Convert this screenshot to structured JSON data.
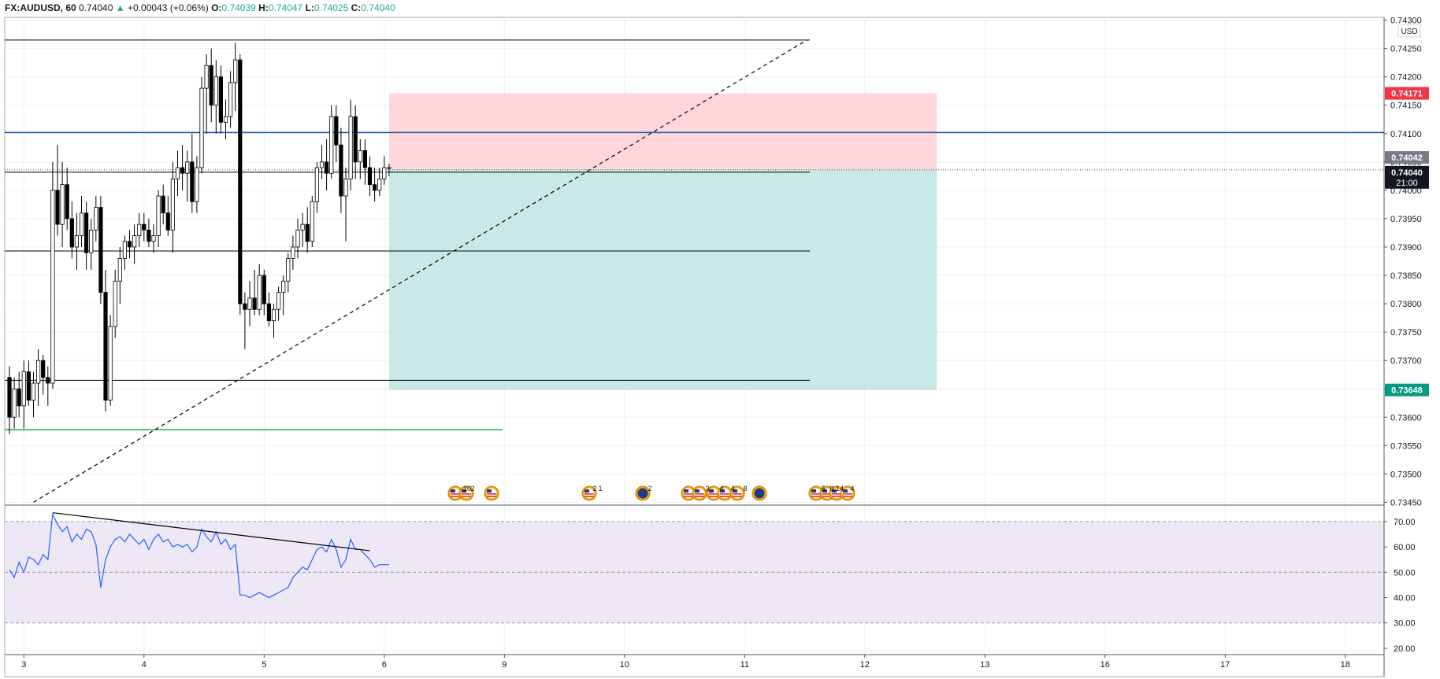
{
  "header": {
    "symbol": "FX:AUDUSD, 60",
    "last": "0.74040",
    "arrow": "▲",
    "change": "+0.00043 (+0.06%)",
    "o_label": "O:",
    "o_value": "0.74039",
    "h_label": "H:",
    "h_value": "0.74047",
    "l_label": "L:",
    "l_value": "0.74025",
    "c_label": "C:",
    "c_value": "0.74040"
  },
  "currency": "USD",
  "price_axis": {
    "ticks": [
      "0.74300",
      "0.74250",
      "0.74200",
      "0.74150",
      "0.74100",
      "0.74050",
      "0.74000",
      "0.73950",
      "0.73900",
      "0.73850",
      "0.73800",
      "0.73750",
      "0.73700",
      "0.73650",
      "0.73600",
      "0.73550",
      "0.73500",
      "0.73450"
    ],
    "min": 0.73445,
    "max": 0.74305
  },
  "price_labels": {
    "target": {
      "value": "0.74171",
      "color": "#f23645"
    },
    "prev": {
      "value": "0.74042",
      "color": "#787b86"
    },
    "last": {
      "value": "0.74040",
      "time": "21:00",
      "color": "#131722"
    },
    "stop": {
      "value": "0.73648",
      "color": "#089981"
    }
  },
  "rsi_axis": {
    "ticks": [
      "70.00",
      "60.00",
      "50.00",
      "40.00",
      "30.00",
      "20.00"
    ],
    "min": 17.5,
    "max": 76.5,
    "upper": 70,
    "mid": 50,
    "lower": 30
  },
  "time_axis": {
    "labels": [
      "3",
      "4",
      "5",
      "6",
      "9",
      "10",
      "11",
      "12",
      "13",
      "16",
      "17",
      "18"
    ]
  },
  "event_labels": [
    "10",
    "2",
    "2",
    "1",
    "2",
    "3",
    "4",
    "4",
    "8",
    "5",
    "0",
    "14",
    "4"
  ],
  "colors": {
    "up": "#ffffff",
    "down": "#000000",
    "outline": "#000000",
    "profit": "#b2dfdb",
    "loss": "#ffcdd2",
    "rsi": "#2962ff",
    "rsi_band": "#ede7f6",
    "hline_blue": "#1c5bab",
    "hline_green": "#28a745"
  },
  "chart_data": {
    "type": "candlestick",
    "symbol": "FX:AUDUSD",
    "interval": "60",
    "candles": [
      [
        0.7367,
        0.7369,
        0.7357,
        0.736
      ],
      [
        0.736,
        0.7367,
        0.7358,
        0.7365
      ],
      [
        0.7365,
        0.7368,
        0.736,
        0.7362
      ],
      [
        0.7362,
        0.737,
        0.7358,
        0.7368
      ],
      [
        0.7368,
        0.737,
        0.7362,
        0.7363
      ],
      [
        0.7363,
        0.7368,
        0.736,
        0.7366
      ],
      [
        0.7366,
        0.7372,
        0.7362,
        0.737
      ],
      [
        0.737,
        0.7371,
        0.7364,
        0.7367
      ],
      [
        0.7367,
        0.7369,
        0.7362,
        0.7366
      ],
      [
        0.7366,
        0.7405,
        0.7365,
        0.74
      ],
      [
        0.74,
        0.7408,
        0.7392,
        0.7394
      ],
      [
        0.7394,
        0.7405,
        0.739,
        0.7401
      ],
      [
        0.7401,
        0.7404,
        0.7393,
        0.7395
      ],
      [
        0.7395,
        0.7398,
        0.7388,
        0.739
      ],
      [
        0.739,
        0.7396,
        0.7386,
        0.7392
      ],
      [
        0.7392,
        0.7399,
        0.739,
        0.7396
      ],
      [
        0.7396,
        0.7398,
        0.7386,
        0.7389
      ],
      [
        0.7389,
        0.7395,
        0.7386,
        0.7393
      ],
      [
        0.7393,
        0.7399,
        0.7391,
        0.7397
      ],
      [
        0.7397,
        0.7399,
        0.738,
        0.7382
      ],
      [
        0.7382,
        0.7386,
        0.7361,
        0.7363
      ],
      [
        0.7363,
        0.7378,
        0.7362,
        0.7376
      ],
      [
        0.7376,
        0.7386,
        0.7374,
        0.7384
      ],
      [
        0.7384,
        0.739,
        0.738,
        0.7388
      ],
      [
        0.7388,
        0.7392,
        0.7386,
        0.7391
      ],
      [
        0.7391,
        0.7393,
        0.7388,
        0.739
      ],
      [
        0.739,
        0.7394,
        0.7387,
        0.7392
      ],
      [
        0.7392,
        0.7396,
        0.739,
        0.7394
      ],
      [
        0.7394,
        0.7396,
        0.7391,
        0.7393
      ],
      [
        0.7393,
        0.7395,
        0.739,
        0.7391
      ],
      [
        0.7391,
        0.7394,
        0.7389,
        0.7392
      ],
      [
        0.7392,
        0.74,
        0.739,
        0.7399
      ],
      [
        0.7399,
        0.7401,
        0.7394,
        0.7396
      ],
      [
        0.7396,
        0.7399,
        0.7392,
        0.7393
      ],
      [
        0.7393,
        0.7405,
        0.7389,
        0.7402
      ],
      [
        0.7402,
        0.7407,
        0.7399,
        0.7404
      ],
      [
        0.7404,
        0.7408,
        0.74,
        0.7403
      ],
      [
        0.7403,
        0.7407,
        0.7398,
        0.7405
      ],
      [
        0.7405,
        0.741,
        0.7396,
        0.7398
      ],
      [
        0.7398,
        0.7406,
        0.7396,
        0.7404
      ],
      [
        0.7404,
        0.742,
        0.7403,
        0.7418
      ],
      [
        0.7418,
        0.7424,
        0.741,
        0.7422
      ],
      [
        0.7422,
        0.7425,
        0.7412,
        0.7415
      ],
      [
        0.7415,
        0.7423,
        0.741,
        0.742
      ],
      [
        0.742,
        0.7422,
        0.741,
        0.7412
      ],
      [
        0.7412,
        0.7416,
        0.7409,
        0.7413
      ],
      [
        0.7413,
        0.7421,
        0.7411,
        0.7419
      ],
      [
        0.7419,
        0.7426,
        0.7414,
        0.7423
      ],
      [
        0.7423,
        0.7424,
        0.7378,
        0.738
      ],
      [
        0.738,
        0.7382,
        0.7372,
        0.7379
      ],
      [
        0.7379,
        0.7384,
        0.7376,
        0.7381
      ],
      [
        0.7381,
        0.7386,
        0.7378,
        0.7379
      ],
      [
        0.7379,
        0.7387,
        0.7378,
        0.7385
      ],
      [
        0.7385,
        0.7386,
        0.7378,
        0.738
      ],
      [
        0.738,
        0.7382,
        0.7376,
        0.7377
      ],
      [
        0.7377,
        0.738,
        0.7374,
        0.7379
      ],
      [
        0.7379,
        0.7383,
        0.7377,
        0.7382
      ],
      [
        0.7382,
        0.7385,
        0.7378,
        0.7384
      ],
      [
        0.7384,
        0.7389,
        0.7382,
        0.7388
      ],
      [
        0.7388,
        0.7392,
        0.7386,
        0.739
      ],
      [
        0.739,
        0.7395,
        0.7388,
        0.7393
      ],
      [
        0.7393,
        0.7396,
        0.739,
        0.7394
      ],
      [
        0.7394,
        0.7397,
        0.7389,
        0.7391
      ],
      [
        0.7391,
        0.7399,
        0.739,
        0.7398
      ],
      [
        0.7398,
        0.7405,
        0.7396,
        0.7404
      ],
      [
        0.7404,
        0.7408,
        0.7402,
        0.7405
      ],
      [
        0.7405,
        0.7409,
        0.74,
        0.7403
      ],
      [
        0.7403,
        0.7415,
        0.7402,
        0.7413
      ],
      [
        0.7413,
        0.7415,
        0.7405,
        0.7408
      ],
      [
        0.7408,
        0.7411,
        0.7396,
        0.7399
      ],
      [
        0.7399,
        0.7404,
        0.7391,
        0.7402
      ],
      [
        0.7402,
        0.7416,
        0.74,
        0.7413
      ],
      [
        0.7413,
        0.7415,
        0.7402,
        0.7405
      ],
      [
        0.7405,
        0.7409,
        0.7402,
        0.7407
      ],
      [
        0.7407,
        0.7409,
        0.7401,
        0.7404
      ],
      [
        0.7404,
        0.7406,
        0.7399,
        0.7401
      ],
      [
        0.7401,
        0.7404,
        0.7398,
        0.74
      ],
      [
        0.74,
        0.7404,
        0.7399,
        0.7402
      ],
      [
        0.7402,
        0.7406,
        0.7401,
        0.7404
      ],
      [
        0.74039,
        0.74047,
        0.74025,
        0.7404
      ]
    ],
    "rsi": [
      51,
      48,
      54,
      50,
      56,
      55,
      53,
      57,
      55,
      73,
      69,
      66,
      68,
      62,
      65,
      63,
      67,
      66,
      61,
      44,
      55,
      60,
      63,
      64,
      62,
      65,
      63,
      61,
      63,
      59,
      63,
      65,
      62,
      63,
      60,
      61,
      60,
      61,
      58,
      60,
      67,
      64,
      62,
      66,
      61,
      63,
      59,
      61,
      41,
      41,
      40,
      41,
      42,
      41,
      40,
      41,
      42,
      43,
      44,
      48,
      50,
      52,
      51,
      55,
      59,
      60,
      58,
      63,
      59,
      52,
      55,
      63,
      59,
      59,
      57,
      55,
      52,
      53,
      53,
      53
    ],
    "levels": {
      "top_line": 0.74265,
      "blue_line": 0.74102,
      "mid_line": 0.73893,
      "low_line": 0.73665,
      "green_line": 0.73578,
      "current_line": 0.74036
    },
    "position": {
      "entry": 0.74037,
      "target": 0.74171,
      "stop": 0.73648,
      "start_index": 79,
      "end_index": 193
    },
    "trendline": {
      "from": [
        5,
        0.7345
      ],
      "to": [
        166,
        0.74265
      ]
    },
    "rsi_trendline": {
      "from": [
        9,
        73.5
      ],
      "to": [
        75,
        58.5
      ]
    },
    "time_labels_index": [
      3,
      28,
      53,
      78,
      103,
      128,
      153,
      178,
      203,
      228,
      253,
      278
    ]
  }
}
